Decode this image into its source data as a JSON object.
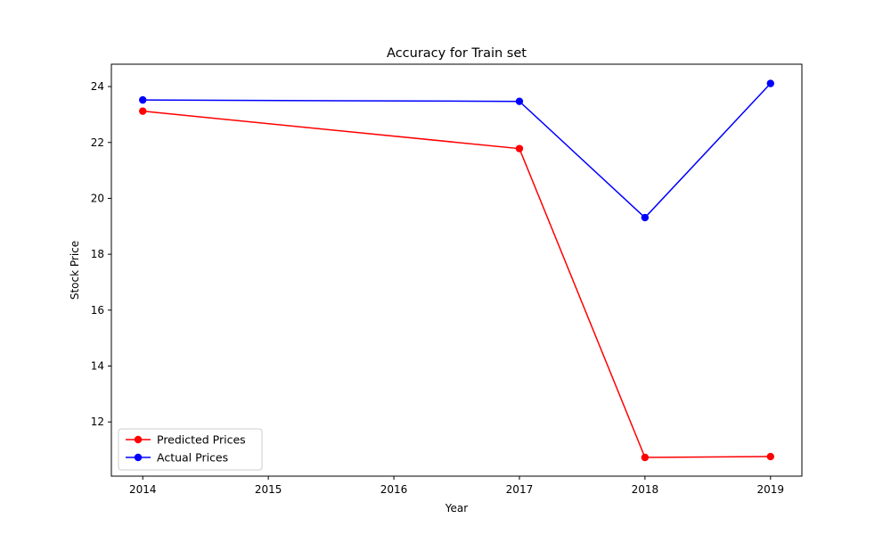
{
  "chart_data": {
    "type": "line",
    "title": "Accuracy for Train set",
    "xlabel": "Year",
    "ylabel": "Stock Price",
    "x": [
      2014,
      2017,
      2018,
      2019
    ],
    "series": [
      {
        "name": "Predicted Prices",
        "color": "#ff0000",
        "marker": "circle",
        "values": [
          23.12,
          21.78,
          10.73,
          10.76
        ]
      },
      {
        "name": "Actual Prices",
        "color": "#0000ff",
        "marker": "circle",
        "values": [
          23.52,
          23.47,
          19.31,
          24.11
        ]
      }
    ],
    "xlim": [
      2013.75,
      2019.25
    ],
    "ylim": [
      10.06,
      24.8
    ],
    "xticks": [
      2014,
      2015,
      2016,
      2017,
      2018,
      2019
    ],
    "yticks": [
      12,
      14,
      16,
      18,
      20,
      22,
      24
    ],
    "grid": false,
    "legend_position": "lower-left"
  }
}
